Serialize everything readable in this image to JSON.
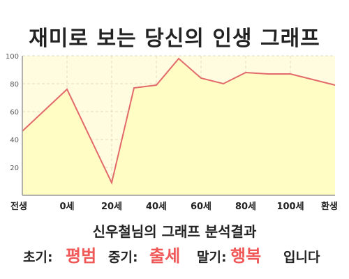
{
  "title": "재미로 보는 당신의 인생 그래프",
  "chart_data": {
    "type": "area",
    "x_tick_labels": [
      "전생",
      "0세",
      "20세",
      "40세",
      "60세",
      "80세",
      "100세",
      "환생"
    ],
    "y_ticks": [
      20,
      40,
      60,
      80,
      100
    ],
    "ylim": [
      0,
      100
    ],
    "grid": true,
    "series": [
      {
        "points": [
          {
            "x": "전생",
            "y": 46
          },
          {
            "x": "0세",
            "y": 76
          },
          {
            "x": "20세",
            "y": 9
          },
          {
            "x": "30세",
            "y": 77
          },
          {
            "x": "40세",
            "y": 79
          },
          {
            "x": "50세",
            "y": 98
          },
          {
            "x": "60세",
            "y": 84
          },
          {
            "x": "70세",
            "y": 80
          },
          {
            "x": "80세",
            "y": 88
          },
          {
            "x": "90세",
            "y": 87
          },
          {
            "x": "100세",
            "y": 87
          },
          {
            "x": "환생",
            "y": 79
          }
        ]
      }
    ],
    "line_color": "#e26a6a",
    "fill_color": "#fffcc4",
    "plot_background": "#fffce0"
  },
  "result": {
    "heading": "신우철님의 그래프 분석결과",
    "early_label": "초기:",
    "early_value": "평범",
    "middle_label": "중기:",
    "middle_value": "출세",
    "late_label": "말기:",
    "late_value": "행복",
    "suffix": "입니다",
    "accent_color": "#f05858"
  }
}
